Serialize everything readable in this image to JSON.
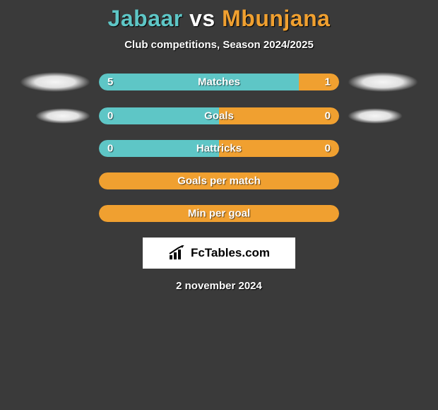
{
  "title": {
    "player1": "Jabaar",
    "vs": "vs",
    "player2": "Mbunjana"
  },
  "subtitle": "Club competitions, Season 2024/2025",
  "colors": {
    "p1": "#5ec6c6",
    "p2": "#f0a030",
    "bg": "#3a3a3a",
    "text": "#ffffff"
  },
  "rows": [
    {
      "label": "Matches",
      "left_value": "5",
      "right_value": "1",
      "left_pct": 83.3,
      "right_pct": 16.7,
      "left_color": "#5ec6c6",
      "right_color": "#f0a030",
      "halo_left": true,
      "halo_right": true,
      "halo_size": "large",
      "bar_mode": "split"
    },
    {
      "label": "Goals",
      "left_value": "0",
      "right_value": "0",
      "left_pct": 50,
      "right_pct": 50,
      "left_color": "#5ec6c6",
      "right_color": "#f0a030",
      "halo_left": true,
      "halo_right": true,
      "halo_size": "small",
      "bar_mode": "split"
    },
    {
      "label": "Hattricks",
      "left_value": "0",
      "right_value": "0",
      "left_pct": 50,
      "right_pct": 50,
      "left_color": "#5ec6c6",
      "right_color": "#f0a030",
      "halo_left": false,
      "halo_right": false,
      "halo_size": "large",
      "bar_mode": "split"
    },
    {
      "label": "Goals per match",
      "left_value": "",
      "right_value": "",
      "left_pct": 0,
      "right_pct": 0,
      "left_color": "#f0a030",
      "right_color": "#f0a030",
      "halo_left": false,
      "halo_right": false,
      "halo_size": "large",
      "bar_mode": "full"
    },
    {
      "label": "Min per goal",
      "left_value": "",
      "right_value": "",
      "left_pct": 0,
      "right_pct": 0,
      "left_color": "#f0a030",
      "right_color": "#f0a030",
      "halo_left": false,
      "halo_right": false,
      "halo_size": "large",
      "bar_mode": "full"
    }
  ],
  "brand": "FcTables.com",
  "date": "2 november 2024"
}
